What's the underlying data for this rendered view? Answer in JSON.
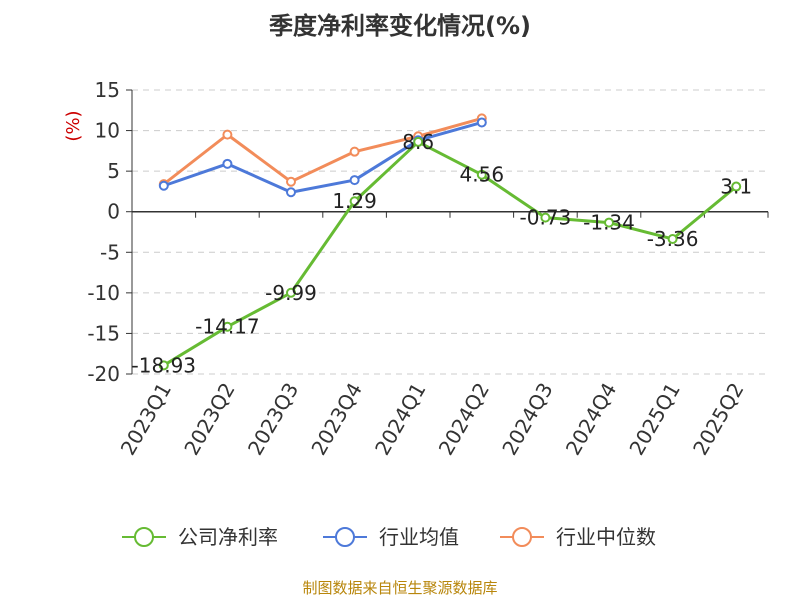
{
  "chart_data": {
    "type": "line",
    "title": "季度净利率变化情况(%)",
    "ylabel": "(%)",
    "xlabel": "",
    "ylim": [
      -20,
      15
    ],
    "yticks": [
      15,
      10,
      5,
      0,
      -5,
      -10,
      -15,
      -20
    ],
    "grid": true,
    "legend_position": "bottom",
    "categories": [
      "2023Q1",
      "2023Q2",
      "2023Q3",
      "2023Q4",
      "2024Q1",
      "2024Q2",
      "2024Q3",
      "2024Q4",
      "2025Q1",
      "2025Q2"
    ],
    "series": [
      {
        "name": "公司净利率",
        "color": "#66bb33",
        "values": [
          -18.93,
          -14.17,
          -9.99,
          1.29,
          8.6,
          4.56,
          -0.73,
          -1.34,
          -3.36,
          3.1
        ],
        "labels": [
          "-18.93",
          "-14.17",
          "-9.99",
          "1.29",
          "8.6",
          "4.56",
          "-0.73",
          "-1.34",
          "-3.36",
          "3.1"
        ]
      },
      {
        "name": "行业均值",
        "color": "#4d79d9",
        "values": [
          3.2,
          5.9,
          2.4,
          3.9,
          8.8,
          11.0,
          null,
          null,
          null,
          null
        ]
      },
      {
        "name": "行业中位数",
        "color": "#f28c5a",
        "values": [
          3.4,
          9.5,
          3.7,
          7.4,
          9.3,
          11.5,
          null,
          null,
          null,
          null
        ]
      }
    ]
  },
  "source_note": "制图数据来自恒生聚源数据库"
}
